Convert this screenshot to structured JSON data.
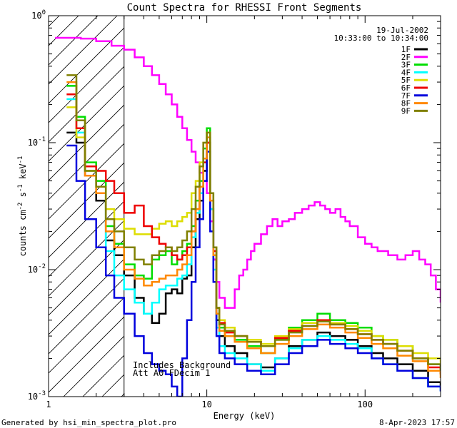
{
  "chart_data": {
    "type": "line",
    "title": "Count Spectra for RHESSI Front Segments",
    "xlabel": "Energy (keV)",
    "ylabel": "counts cm^-2 s^-1 keV^-1",
    "xscale": "log",
    "yscale": "log",
    "xlim": [
      1,
      300
    ],
    "ylim": [
      0.001,
      1.0
    ],
    "x_ticks": [
      "1",
      "10",
      "100"
    ],
    "y_ticks": [
      "10^-3",
      "10^-2",
      "10^-1",
      "10^0"
    ],
    "date": "19-Jul-2002",
    "time_range": "10:33:00 to 10:34:00",
    "annotations": [
      "Includes Background",
      "Att A0 FDecim 1"
    ],
    "hatched_region": [
      1,
      3
    ],
    "footer_left": "Generated by hsi_min_spectra_plot.pro",
    "footer_right": "8-Apr-2023 17:57",
    "legend_position": "top-right",
    "series": [
      {
        "name": "1F",
        "color": "#000000",
        "x": [
          1.3,
          1.5,
          1.7,
          2.0,
          2.3,
          2.6,
          3.0,
          3.5,
          4.0,
          4.5,
          5.0,
          5.5,
          6.0,
          6.5,
          7.0,
          7.5,
          8.0,
          8.5,
          9.0,
          9.5,
          10.0,
          10.5,
          11.0,
          11.5,
          12,
          13,
          15,
          18,
          22,
          27,
          33,
          40,
          50,
          60,
          75,
          90,
          110,
          130,
          160,
          200,
          250,
          300
        ],
        "values": [
          0.12,
          0.1,
          0.055,
          0.035,
          0.017,
          0.013,
          0.009,
          0.006,
          0.0045,
          0.0038,
          0.0045,
          0.0065,
          0.007,
          0.0065,
          0.0085,
          0.009,
          0.015,
          0.025,
          0.035,
          0.06,
          0.1,
          0.03,
          0.012,
          0.004,
          0.003,
          0.0025,
          0.0022,
          0.0018,
          0.0017,
          0.002,
          0.0025,
          0.0028,
          0.0032,
          0.003,
          0.0028,
          0.0025,
          0.0022,
          0.002,
          0.0018,
          0.0016,
          0.0013,
          0.0012
        ]
      },
      {
        "name": "2F",
        "color": "#ff00ff",
        "x": [
          1.1,
          1.3,
          1.6,
          2.0,
          2.5,
          3.0,
          3.5,
          4.0,
          4.5,
          5.0,
          5.5,
          6.0,
          6.5,
          7.0,
          7.5,
          8.0,
          8.5,
          9.0,
          9.5,
          10.0,
          10.5,
          11.0,
          11.5,
          12,
          13,
          14,
          15,
          16,
          17,
          18,
          19,
          20,
          22,
          24,
          26,
          28,
          30,
          33,
          36,
          40,
          44,
          48,
          52,
          56,
          60,
          65,
          70,
          75,
          80,
          90,
          100,
          110,
          120,
          140,
          160,
          180,
          200,
          220,
          240,
          260,
          280,
          300
        ],
        "values": [
          0.67,
          0.67,
          0.66,
          0.63,
          0.58,
          0.54,
          0.47,
          0.4,
          0.34,
          0.29,
          0.24,
          0.2,
          0.16,
          0.13,
          0.105,
          0.085,
          0.07,
          0.058,
          0.05,
          0.04,
          0.024,
          0.012,
          0.008,
          0.006,
          0.005,
          0.005,
          0.007,
          0.009,
          0.01,
          0.012,
          0.014,
          0.016,
          0.019,
          0.022,
          0.025,
          0.022,
          0.024,
          0.025,
          0.028,
          0.03,
          0.032,
          0.034,
          0.032,
          0.03,
          0.028,
          0.03,
          0.026,
          0.024,
          0.022,
          0.018,
          0.016,
          0.015,
          0.014,
          0.013,
          0.012,
          0.013,
          0.014,
          0.012,
          0.011,
          0.009,
          0.007,
          0.0055
        ]
      },
      {
        "name": "3F",
        "color": "#00dd00",
        "x": [
          1.3,
          1.5,
          1.7,
          2.0,
          2.3,
          2.6,
          3.0,
          3.5,
          4.0,
          4.5,
          5.0,
          5.5,
          6.0,
          6.5,
          7.0,
          7.5,
          8.0,
          8.5,
          9.0,
          9.5,
          10.0,
          10.5,
          11.0,
          11.5,
          12,
          13,
          15,
          18,
          22,
          27,
          33,
          40,
          50,
          60,
          75,
          90,
          110,
          130,
          160,
          200,
          250,
          300
        ],
        "values": [
          0.28,
          0.16,
          0.07,
          0.05,
          0.022,
          0.016,
          0.011,
          0.009,
          0.0085,
          0.012,
          0.013,
          0.014,
          0.011,
          0.012,
          0.014,
          0.016,
          0.022,
          0.035,
          0.05,
          0.09,
          0.13,
          0.04,
          0.015,
          0.005,
          0.0035,
          0.003,
          0.0028,
          0.0025,
          0.0022,
          0.0028,
          0.0035,
          0.004,
          0.0045,
          0.004,
          0.0038,
          0.0035,
          0.003,
          0.0028,
          0.0025,
          0.002,
          0.0018,
          0.0015
        ]
      },
      {
        "name": "4F",
        "color": "#00ffff",
        "x": [
          1.3,
          1.5,
          1.7,
          2.0,
          2.3,
          2.6,
          3.0,
          3.5,
          4.0,
          4.5,
          5.0,
          5.5,
          6.0,
          6.5,
          7.0,
          7.5,
          8.0,
          8.5,
          9.0,
          9.5,
          10.0,
          10.5,
          11.0,
          11.5,
          12,
          13,
          15,
          18,
          22,
          27,
          33,
          40,
          50,
          60,
          75,
          90,
          110,
          130,
          160,
          200,
          250,
          300
        ],
        "values": [
          0.22,
          0.12,
          0.06,
          0.04,
          0.014,
          0.009,
          0.007,
          0.0055,
          0.0045,
          0.0055,
          0.007,
          0.0075,
          0.0075,
          0.0085,
          0.009,
          0.011,
          0.018,
          0.028,
          0.04,
          0.07,
          0.11,
          0.03,
          0.01,
          0.0035,
          0.0025,
          0.0022,
          0.002,
          0.0018,
          0.0016,
          0.002,
          0.0024,
          0.0028,
          0.003,
          0.0028,
          0.0026,
          0.0024,
          0.002,
          0.0018,
          0.0016,
          0.0014,
          0.0012,
          0.0011
        ]
      },
      {
        "name": "5F",
        "color": "#dddd00",
        "x": [
          1.3,
          1.5,
          1.7,
          2.0,
          2.3,
          2.6,
          3.0,
          3.5,
          4.0,
          4.5,
          5.0,
          5.5,
          6.0,
          6.5,
          7.0,
          7.5,
          8.0,
          8.5,
          9.0,
          9.5,
          10.0,
          10.5,
          11.0,
          11.5,
          12,
          13,
          15,
          18,
          22,
          27,
          33,
          40,
          50,
          60,
          75,
          90,
          110,
          130,
          160,
          200,
          250,
          300
        ],
        "values": [
          0.19,
          0.11,
          0.06,
          0.04,
          0.03,
          0.025,
          0.021,
          0.019,
          0.019,
          0.021,
          0.023,
          0.024,
          0.022,
          0.024,
          0.026,
          0.028,
          0.04,
          0.05,
          0.07,
          0.1,
          0.12,
          0.04,
          0.015,
          0.005,
          0.004,
          0.0035,
          0.003,
          0.0028,
          0.0026,
          0.003,
          0.0034,
          0.0038,
          0.004,
          0.0038,
          0.0036,
          0.0033,
          0.003,
          0.0028,
          0.0025,
          0.0022,
          0.002,
          0.0018
        ]
      },
      {
        "name": "6F",
        "color": "#ee0000",
        "x": [
          1.3,
          1.5,
          1.7,
          2.0,
          2.3,
          2.6,
          3.0,
          3.5,
          4.0,
          4.5,
          5.0,
          5.5,
          6.0,
          6.5,
          7.0,
          7.5,
          8.0,
          8.5,
          9.0,
          9.5,
          10.0,
          10.5,
          11.0,
          11.5,
          12,
          13,
          15,
          18,
          22,
          27,
          33,
          40,
          50,
          60,
          75,
          90,
          110,
          130,
          160,
          200,
          250,
          300
        ],
        "values": [
          0.24,
          0.13,
          0.065,
          0.06,
          0.05,
          0.04,
          0.028,
          0.032,
          0.022,
          0.018,
          0.016,
          0.015,
          0.013,
          0.012,
          0.013,
          0.015,
          0.02,
          0.03,
          0.045,
          0.07,
          0.1,
          0.035,
          0.014,
          0.005,
          0.0038,
          0.0032,
          0.003,
          0.0027,
          0.0025,
          0.0029,
          0.0033,
          0.0036,
          0.004,
          0.0037,
          0.0034,
          0.0031,
          0.0028,
          0.0026,
          0.0023,
          0.002,
          0.0017,
          0.0015
        ]
      },
      {
        "name": "7F",
        "color": "#0000dd",
        "x": [
          1.3,
          1.5,
          1.7,
          2.0,
          2.3,
          2.6,
          3.0,
          3.5,
          4.0,
          4.5,
          5.0,
          5.5,
          6.0,
          6.5,
          7.0,
          7.5,
          8.0,
          8.5,
          9.0,
          9.5,
          10.0,
          10.5,
          11.0,
          11.5,
          12,
          13,
          15,
          18,
          22,
          27,
          33,
          40,
          50,
          60,
          75,
          90,
          110,
          130,
          160,
          200,
          250,
          300
        ],
        "values": [
          0.095,
          0.05,
          0.025,
          0.015,
          0.009,
          0.006,
          0.0045,
          0.003,
          0.0022,
          0.0018,
          0.0016,
          0.0015,
          0.0012,
          0.001,
          0.002,
          0.004,
          0.008,
          0.015,
          0.025,
          0.05,
          0.085,
          0.02,
          0.008,
          0.003,
          0.0022,
          0.002,
          0.0018,
          0.0016,
          0.0015,
          0.0018,
          0.0022,
          0.0025,
          0.0028,
          0.0026,
          0.0024,
          0.0022,
          0.002,
          0.0018,
          0.0016,
          0.0014,
          0.0012,
          0.0011
        ]
      },
      {
        "name": "8F",
        "color": "#ff8800",
        "x": [
          1.3,
          1.5,
          1.7,
          2.0,
          2.3,
          2.6,
          3.0,
          3.5,
          4.0,
          4.5,
          5.0,
          5.5,
          6.0,
          6.5,
          7.0,
          7.5,
          8.0,
          8.5,
          9.0,
          9.5,
          10.0,
          10.5,
          11.0,
          11.5,
          12,
          13,
          15,
          18,
          22,
          27,
          33,
          40,
          50,
          60,
          75,
          90,
          110,
          130,
          160,
          200,
          250,
          300
        ],
        "values": [
          0.3,
          0.15,
          0.055,
          0.04,
          0.02,
          0.015,
          0.01,
          0.0085,
          0.0075,
          0.008,
          0.0085,
          0.009,
          0.009,
          0.01,
          0.011,
          0.013,
          0.02,
          0.03,
          0.045,
          0.075,
          0.11,
          0.035,
          0.013,
          0.0045,
          0.0033,
          0.003,
          0.0027,
          0.0024,
          0.0022,
          0.0026,
          0.003,
          0.0034,
          0.0037,
          0.0035,
          0.0032,
          0.0029,
          0.0026,
          0.0024,
          0.0021,
          0.0019,
          0.0016,
          0.0014
        ]
      },
      {
        "name": "9F",
        "color": "#808000",
        "x": [
          1.3,
          1.5,
          1.7,
          2.0,
          2.3,
          2.6,
          3.0,
          3.5,
          4.0,
          4.5,
          5.0,
          5.5,
          6.0,
          6.5,
          7.0,
          7.5,
          8.0,
          8.5,
          9.0,
          9.5,
          10.0,
          10.5,
          11.0,
          11.5,
          12,
          13,
          15,
          18,
          22,
          27,
          33,
          40,
          50,
          60,
          75,
          90,
          110,
          130,
          160,
          200,
          250,
          300
        ],
        "values": [
          0.34,
          0.15,
          0.06,
          0.045,
          0.025,
          0.02,
          0.015,
          0.012,
          0.011,
          0.013,
          0.014,
          0.015,
          0.014,
          0.015,
          0.017,
          0.02,
          0.03,
          0.045,
          0.065,
          0.1,
          0.12,
          0.04,
          0.015,
          0.005,
          0.0037,
          0.0033,
          0.003,
          0.0027,
          0.0025,
          0.0028,
          0.0032,
          0.0036,
          0.0039,
          0.0037,
          0.0034,
          0.0031,
          0.0028,
          0.0026,
          0.0023,
          0.002,
          0.0018,
          0.0016
        ]
      }
    ]
  }
}
